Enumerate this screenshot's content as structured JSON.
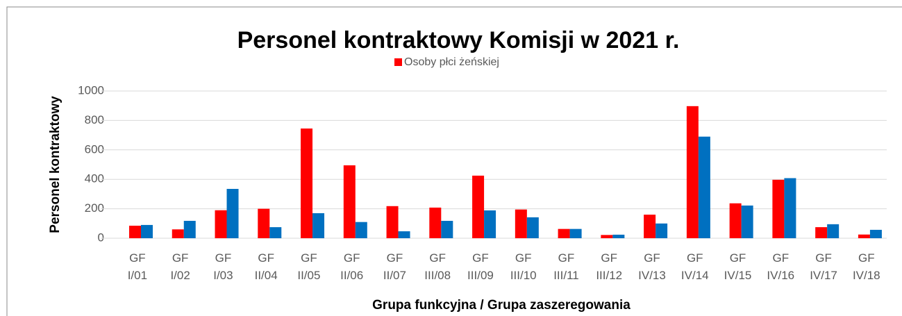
{
  "chart_data": {
    "type": "bar",
    "title": "Personel kontraktowy Komisji w 2021 r.",
    "y_label": "Personel kontraktowy",
    "x_label": "Grupa funkcyjna / Grupa zaszeregowania",
    "categories": [
      "GF I/01",
      "GF I/02",
      "GF I/03",
      "GF II/04",
      "GF II/05",
      "GF II/06",
      "GF II/07",
      "GF III/08",
      "GF III/09",
      "GF III/10",
      "GF III/11",
      "GF III/12",
      "GF IV/13",
      "GF IV/14",
      "GF IV/15",
      "GF IV/16",
      "GF IV/17",
      "GF IV/18"
    ],
    "series": [
      {
        "name": "Osoby płci żeńskiej",
        "color": "#ff0000",
        "values": [
          85,
          60,
          190,
          200,
          745,
          495,
          218,
          208,
          425,
          195,
          63,
          22,
          160,
          897,
          237,
          397,
          75,
          25
        ]
      },
      {
        "color": "#0070c0",
        "values": [
          90,
          118,
          335,
          75,
          170,
          110,
          47,
          118,
          189,
          142,
          63,
          24,
          100,
          690,
          222,
          408,
          95,
          57
        ]
      }
    ],
    "ylim": [
      0,
      1000
    ],
    "yticks": [
      0,
      200,
      400,
      600,
      800,
      1000
    ],
    "grid": true
  }
}
